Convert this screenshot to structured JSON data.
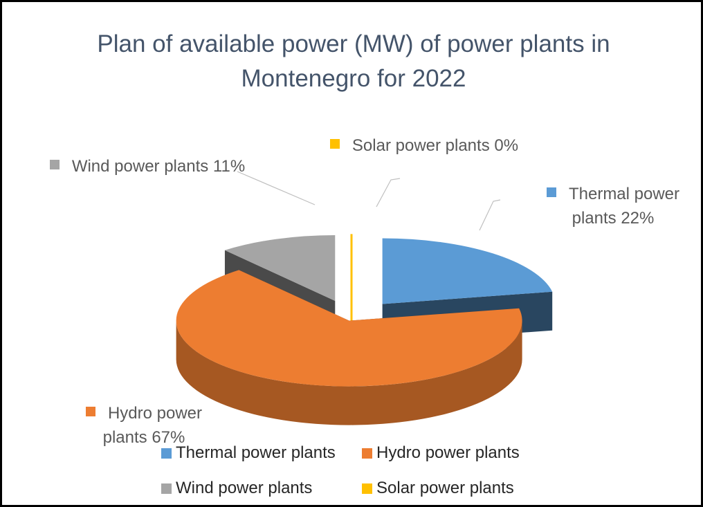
{
  "chart_data": {
    "type": "pie",
    "title": "Plan of available power (MW) of power plants in Montenegro for 2022",
    "categories": [
      "Thermal power plants",
      "Hydro power plants",
      "Wind power plants",
      "Solar power plants"
    ],
    "values": [
      22,
      67,
      11,
      0
    ],
    "value_labels": [
      "22%",
      "67%",
      "11%",
      "0%"
    ],
    "colors": [
      "#5b9bd5",
      "#ed7d31",
      "#a5a5a5",
      "#ffc000"
    ],
    "legend": "bottom"
  }
}
